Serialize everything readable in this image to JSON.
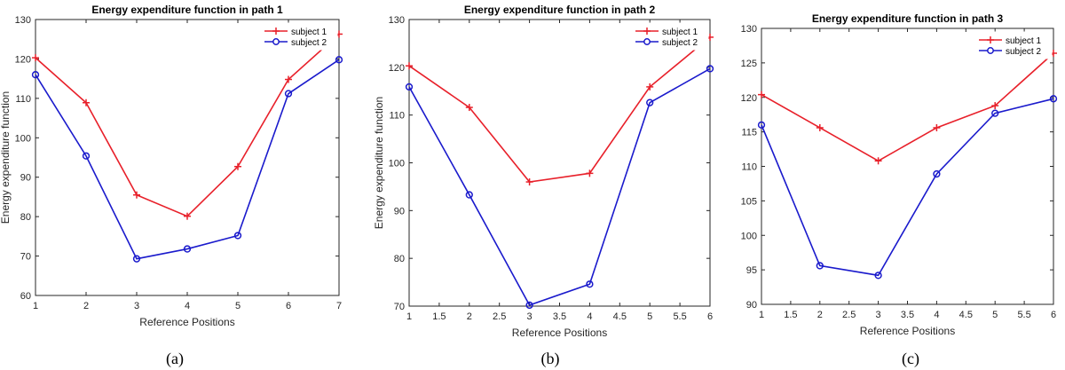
{
  "colors": {
    "subject1": "#e8202a",
    "subject2": "#1a1acc"
  },
  "chart_data": [
    {
      "type": "line",
      "title": "Energy expenditure function in path 1",
      "xlabel": "Reference Positions",
      "ylabel": "Energy expenditure function",
      "xlim": [
        1,
        7
      ],
      "ylim": [
        60,
        130
      ],
      "xticks": [
        1,
        2,
        3,
        4,
        5,
        6,
        7
      ],
      "xtick_labels": [
        "1",
        "2",
        "3",
        "4",
        "5",
        "6",
        "7"
      ],
      "yticks": [
        60,
        70,
        80,
        90,
        100,
        110,
        120,
        130
      ],
      "ytick_labels": [
        "60",
        "70",
        "80",
        "90",
        "100",
        "110",
        "120",
        "130"
      ],
      "grid": false,
      "legend_position": "top-right",
      "caption": "(a)",
      "x": [
        1,
        2,
        3,
        4,
        5,
        6,
        7
      ],
      "series": [
        {
          "name": "subject 1",
          "marker": "plus",
          "values": [
            120.3,
            108.9,
            85.5,
            80.1,
            92.7,
            114.8,
            126.3
          ]
        },
        {
          "name": "subject 2",
          "marker": "circle",
          "values": [
            116.0,
            95.4,
            69.3,
            71.8,
            75.2,
            111.2,
            119.8
          ]
        }
      ]
    },
    {
      "type": "line",
      "title": "Energy expenditure function in path 2",
      "xlabel": "Reference Positions",
      "ylabel": "Energy expenditure function",
      "xlim": [
        1,
        6
      ],
      "ylim": [
        70,
        130
      ],
      "xticks": [
        1,
        1.5,
        2,
        2.5,
        3,
        3.5,
        4,
        4.5,
        5,
        5.5,
        6
      ],
      "xtick_labels": [
        "1",
        "1.5",
        "2",
        "2.5",
        "3",
        "3.5",
        "4",
        "4.5",
        "5",
        "5.5",
        "6"
      ],
      "yticks": [
        70,
        80,
        90,
        100,
        110,
        120,
        130
      ],
      "ytick_labels": [
        "70",
        "80",
        "90",
        "100",
        "110",
        "120",
        "130"
      ],
      "grid": false,
      "legend_position": "top-right",
      "caption": "(b)",
      "x": [
        1,
        2,
        3,
        4,
        5,
        6
      ],
      "series": [
        {
          "name": "subject 1",
          "marker": "plus",
          "values": [
            120.3,
            111.6,
            96.0,
            97.8,
            115.9,
            126.3
          ]
        },
        {
          "name": "subject 2",
          "marker": "circle",
          "values": [
            115.9,
            93.3,
            70.2,
            74.6,
            112.6,
            119.7
          ]
        }
      ]
    },
    {
      "type": "line",
      "title": "Energy expenditure function in path 3",
      "xlabel": "Reference Positions",
      "ylabel": "",
      "xlim": [
        1,
        6
      ],
      "ylim": [
        90,
        130
      ],
      "xticks": [
        1,
        1.5,
        2,
        2.5,
        3,
        3.5,
        4,
        4.5,
        5,
        5.5,
        6
      ],
      "xtick_labels": [
        "1",
        "1.5",
        "2",
        "2.5",
        "3",
        "3.5",
        "4",
        "4.5",
        "5",
        "5.5",
        "6"
      ],
      "yticks": [
        90,
        95,
        100,
        105,
        110,
        115,
        120,
        125,
        130
      ],
      "ytick_labels": [
        "90",
        "95",
        "100",
        "105",
        "110",
        "115",
        "120",
        "125",
        "130"
      ],
      "grid": false,
      "legend_position": "top-right",
      "caption": "(c)",
      "x": [
        1,
        2,
        3,
        4,
        5,
        6
      ],
      "series": [
        {
          "name": "subject 1",
          "marker": "plus",
          "values": [
            120.4,
            115.6,
            110.8,
            115.6,
            118.8,
            126.4
          ]
        },
        {
          "name": "subject 2",
          "marker": "circle",
          "values": [
            116.0,
            95.6,
            94.2,
            108.9,
            117.7,
            119.8
          ]
        }
      ]
    }
  ]
}
